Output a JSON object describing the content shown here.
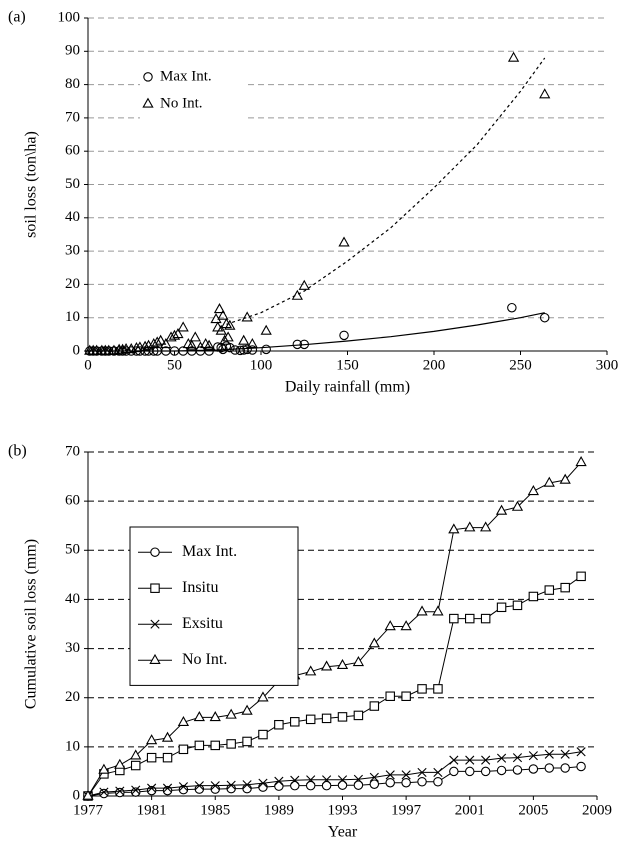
{
  "chart_data": [
    {
      "type": "scatter",
      "panel": "(a)",
      "x_label": "Daily rainfall (mm)",
      "y_label": "soil loss (ton\\ha)",
      "xlim": [
        0,
        300
      ],
      "xticks": [
        0,
        50,
        100,
        150,
        200,
        250,
        300
      ],
      "ylim": [
        0,
        100
      ],
      "yticks": [
        0,
        10,
        20,
        30,
        40,
        50,
        60,
        70,
        80,
        90,
        100
      ],
      "grid": true,
      "grid_color": "#999999",
      "legend": "upper left",
      "series": [
        {
          "name": "Max Int.",
          "marker": "circle",
          "color": "#000000",
          "x": [
            1,
            3,
            5,
            8,
            10,
            12,
            15,
            18,
            20,
            22,
            25,
            28,
            30,
            33,
            35,
            38,
            40,
            45,
            50,
            55,
            60,
            65,
            70,
            75,
            77,
            78,
            80,
            82,
            85,
            88,
            90,
            92,
            95,
            103,
            121,
            125,
            148,
            245,
            264
          ],
          "values": [
            0,
            0,
            0,
            0,
            0,
            0,
            0,
            0,
            0,
            0,
            0,
            0,
            0,
            0,
            0,
            0,
            0,
            0,
            0,
            0,
            0,
            0,
            0,
            1.2,
            1,
            0.5,
            1.5,
            1,
            0.3,
            0.2,
            0.3,
            0.5,
            0.3,
            0.5,
            2,
            2,
            4.7,
            13,
            10
          ],
          "trend": {
            "dash": "solid",
            "x": [
              0,
              50,
              75,
              100,
              125,
              150,
              175,
              200,
              225,
              250,
              264
            ],
            "values": [
              0,
              0,
              0.3,
              1,
              1.9,
              3,
              4.3,
              5.9,
              7.8,
              10,
              11.5
            ]
          }
        },
        {
          "name": "No Int.",
          "marker": "triangle",
          "color": "#000000",
          "x": [
            1,
            3,
            5,
            8,
            10,
            12,
            15,
            18,
            20,
            22,
            25,
            28,
            30,
            33,
            35,
            38,
            40,
            42,
            45,
            48,
            50,
            52,
            55,
            58,
            60,
            62,
            65,
            68,
            70,
            74,
            75,
            76,
            77,
            78,
            79,
            80,
            81,
            82,
            90,
            92,
            95,
            103,
            121,
            125,
            148,
            246,
            264
          ],
          "values": [
            0,
            0,
            0,
            0,
            0,
            0,
            0,
            0.3,
            0.3,
            0.5,
            0.5,
            0.8,
            1,
            1.2,
            1.5,
            2,
            2.5,
            3,
            2,
            4,
            4.5,
            5,
            7,
            2,
            1.5,
            4,
            1,
            2,
            1.5,
            9.5,
            7,
            12.5,
            6,
            10.5,
            3,
            8,
            4,
            7.5,
            3,
            10,
            2,
            6,
            16.5,
            19.5,
            32.5,
            88,
            77
          ],
          "trend": {
            "dash": "dotted",
            "x": [
              80,
              100,
              125,
              150,
              175,
              200,
              225,
              250,
              264
            ],
            "values": [
              8,
              11.5,
              18,
              27,
              37,
              49,
              62,
              78,
              88
            ]
          }
        }
      ]
    },
    {
      "type": "line",
      "panel": "(b)",
      "x_label": "Year",
      "y_label": "Cumulative soil loss (mm)",
      "xlim": [
        1977,
        2009
      ],
      "xticks": [
        1977,
        1981,
        1985,
        1989,
        1993,
        1997,
        2001,
        2005,
        2009
      ],
      "ylim": [
        0,
        70
      ],
      "yticks": [
        0,
        10,
        20,
        30,
        40,
        50,
        60,
        70
      ],
      "grid": true,
      "grid_color": "#000000",
      "legend": "upper left",
      "x": [
        1977,
        1978,
        1979,
        1980,
        1981,
        1982,
        1983,
        1984,
        1985,
        1986,
        1987,
        1988,
        1989,
        1990,
        1991,
        1992,
        1993,
        1994,
        1995,
        1996,
        1997,
        1998,
        1999,
        2000,
        2001,
        2002,
        2003,
        2004,
        2005,
        2006,
        2007,
        2008
      ],
      "series": [
        {
          "name": "Max Int.",
          "marker": "circle",
          "color": "#000000",
          "values": [
            0,
            0.5,
            0.7,
            0.8,
            1.1,
            1.1,
            1.3,
            1.4,
            1.4,
            1.5,
            1.5,
            1.8,
            2,
            2.1,
            2.1,
            2.1,
            2.2,
            2.2,
            2.4,
            2.7,
            2.7,
            2.9,
            2.9,
            5,
            5,
            5,
            5.2,
            5.3,
            5.5,
            5.7,
            5.7,
            6
          ]
        },
        {
          "name": "Insitu",
          "marker": "square",
          "color": "#000000",
          "values": [
            0,
            4.5,
            5.2,
            6.2,
            7.8,
            7.8,
            9.5,
            10.3,
            10.3,
            10.6,
            11.1,
            12.5,
            14.5,
            15.1,
            15.6,
            15.8,
            16.1,
            16.4,
            18.3,
            20.3,
            20.3,
            21.8,
            21.8,
            36.1,
            36.1,
            36.1,
            38.4,
            38.8,
            40.6,
            41.9,
            42.4,
            44.7
          ]
        },
        {
          "name": "Exsitu",
          "marker": "x",
          "color": "#000000",
          "values": [
            0,
            0.8,
            1,
            1.2,
            1.6,
            1.6,
            1.9,
            2.1,
            2.1,
            2.2,
            2.3,
            2.6,
            3,
            3.2,
            3.3,
            3.3,
            3.3,
            3.4,
            3.8,
            4.3,
            4.3,
            4.8,
            4.8,
            7.3,
            7.3,
            7.3,
            7.7,
            7.8,
            8.2,
            8.5,
            8.5,
            9
          ]
        },
        {
          "name": "No Int.",
          "marker": "triangle",
          "color": "#000000",
          "values": [
            0,
            5.3,
            6.3,
            8.2,
            11.3,
            11.8,
            15,
            16,
            16,
            16.5,
            17.3,
            20,
            23.5,
            24.5,
            25.3,
            26.3,
            26.6,
            27.2,
            31,
            34.5,
            34.5,
            37.5,
            37.5,
            54.2,
            54.6,
            54.6,
            58,
            58.8,
            62,
            63.7,
            64.3,
            67.9
          ]
        }
      ]
    }
  ]
}
